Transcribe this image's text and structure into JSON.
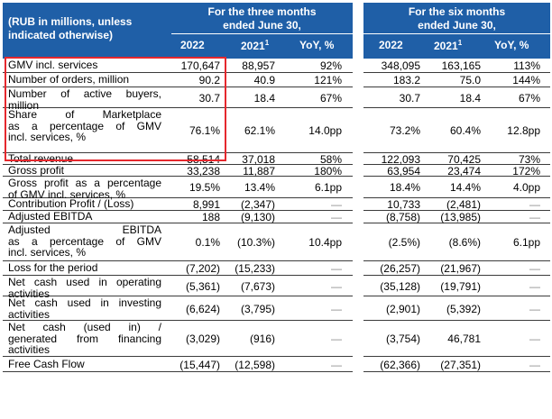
{
  "header": {
    "unit_note_line1": "(RUB in millions, unless",
    "unit_note_line2": "indicated otherwise)",
    "three_months_line1": "For the three months",
    "three_months_line2": "ended June 30,",
    "six_months_line1": "For the six months",
    "six_months_line2": "ended June 30,",
    "col_2022": "2022",
    "col_2021": "2021",
    "col_2021_sup": "1",
    "col_yoy": "YoY, %"
  },
  "rows": [
    {
      "label_lines": [
        "GMV incl. services"
      ],
      "q22": "170,647",
      "q21": "88,957",
      "qyoy": "92%",
      "h22": "348,095",
      "h21": "163,165",
      "hyoy": "113%"
    },
    {
      "label_lines": [
        "Number of orders, million"
      ],
      "q22": "90.2",
      "q21": "40.9",
      "qyoy": "121%",
      "h22": "183.2",
      "h21": "75.0",
      "hyoy": "144%"
    },
    {
      "label_lines": [
        "Number of active buyers,",
        "million"
      ],
      "q22": "30.7",
      "q21": "18.4",
      "qyoy": "67%",
      "h22": "30.7",
      "h21": "18.4",
      "hyoy": "67%"
    },
    {
      "label_lines": [
        "Share of Marketplace",
        "as a percentage of GMV",
        "incl. services, %"
      ],
      "q22": "76.1%",
      "q21": "62.1%",
      "qyoy": "14.0pp",
      "h22": "73.2%",
      "h21": "60.4%",
      "hyoy": "12.8pp"
    },
    {
      "label_lines": [
        "Total revenue"
      ],
      "q22": "58,514",
      "q21": "37,018",
      "qyoy": "58%",
      "h22": "122,093",
      "h21": "70,425",
      "hyoy": "73%"
    },
    {
      "label_lines": [
        "Gross profit"
      ],
      "q22": "33,238",
      "q21": "11,887",
      "qyoy": "180%",
      "h22": "63,954",
      "h21": "23,474",
      "hyoy": "172%"
    },
    {
      "label_lines": [
        "Gross profit as a percentage",
        "of GMV incl. services, %"
      ],
      "q22": "19.5%",
      "q21": "13.4%",
      "qyoy": "6.1pp",
      "h22": "18.4%",
      "h21": "14.4%",
      "hyoy": "4.0pp"
    },
    {
      "label_lines": [
        "Contribution Profit / (Loss)"
      ],
      "q22": "8,991",
      "q21": "(2,347)",
      "qyoy": "—",
      "h22": "10,733",
      "h21": "(2,481)",
      "hyoy": "—"
    },
    {
      "label_lines": [
        "Adjusted EBITDA"
      ],
      "q22": "188",
      "q21": "(9,130)",
      "qyoy": "—",
      "h22": "(8,758)",
      "h21": "(13,985)",
      "hyoy": "—"
    },
    {
      "label_lines": [
        "Adjusted EBITDA",
        "as a percentage of GMV",
        "incl. services, %"
      ],
      "q22": "0.1%",
      "q21": "(10.3%)",
      "qyoy": "10.4pp",
      "h22": "(2.5%)",
      "h21": "(8.6%)",
      "hyoy": "6.1pp"
    },
    {
      "label_lines": [
        "Loss for the period"
      ],
      "q22": "(7,202)",
      "q21": "(15,233)",
      "qyoy": "—",
      "h22": "(26,257)",
      "h21": "(21,967)",
      "hyoy": "—"
    },
    {
      "label_lines": [
        "Net cash used in operating",
        "activities"
      ],
      "q22": "(5,361)",
      "q21": "(7,673)",
      "qyoy": "—",
      "h22": "(35,128)",
      "h21": "(19,791)",
      "hyoy": "—"
    },
    {
      "label_lines": [
        "Net cash used in investing",
        "activities"
      ],
      "q22": "(6,624)",
      "q21": "(3,795)",
      "qyoy": "—",
      "h22": "(2,901)",
      "h21": "(5,392)",
      "hyoy": "—"
    },
    {
      "label_lines": [
        "Net cash (used in) /",
        "generated from financing",
        "activities"
      ],
      "q22": "(3,029)",
      "q21": "(916)",
      "qyoy": "—",
      "h22": "(3,754)",
      "h21": "46,781",
      "hyoy": "—"
    },
    {
      "label_lines": [
        "Free Cash Flow"
      ],
      "q22": "(15,447)",
      "q21": "(12,598)",
      "qyoy": "—",
      "h22": "(62,366)",
      "h21": "(27,351)",
      "hyoy": "—"
    }
  ],
  "colors": {
    "header_bg": "#1f5fa7",
    "header_text": "#ffffff",
    "highlight_box": "#e5282e"
  }
}
